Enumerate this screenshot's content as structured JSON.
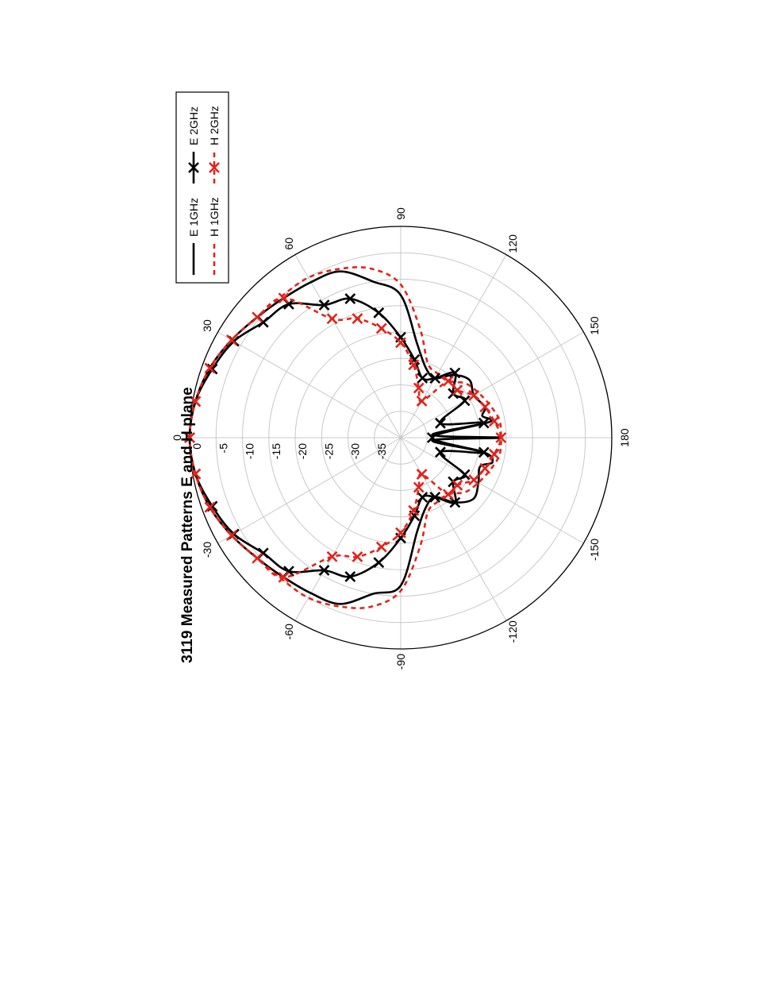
{
  "chart_data": {
    "type": "polar",
    "title": "3119 Measured Patterns E and H plane",
    "radial_unit": "dB",
    "radial_range": [
      -40,
      0
    ],
    "radial_ticks": [
      0,
      -5,
      -10,
      -15,
      -20,
      -25,
      -30,
      -35
    ],
    "radial_tick_labels": [
      "0",
      "-5",
      "-10",
      "-15",
      "-20",
      "-25",
      "-30",
      "-35"
    ],
    "angular_ticks": [
      0,
      30,
      60,
      90,
      120,
      150,
      180,
      -150,
      -120,
      -90,
      -60,
      -30
    ],
    "angular_tick_labels": [
      "0",
      "30",
      "60",
      "90",
      "120",
      "150",
      "180",
      "-150",
      "-120",
      "-90",
      "-60",
      "-30"
    ],
    "grid": true,
    "legend_position": "top-right",
    "series": [
      {
        "name": "E 1GHz",
        "color": "#000000",
        "style": "solid",
        "markers": false,
        "angles": [
          0,
          10,
          20,
          30,
          40,
          50,
          60,
          70,
          80,
          90,
          100,
          110,
          120,
          130,
          140,
          150,
          160,
          165,
          170,
          175,
          180,
          -175,
          -170,
          -165,
          -160,
          -150,
          -140,
          -130,
          -120,
          -110,
          -100,
          -90,
          -80,
          -70,
          -60,
          -50,
          -40,
          -30,
          -20,
          -10
        ],
        "values": [
          0,
          -0.5,
          -1.5,
          -3,
          -4.5,
          -5.5,
          -6,
          -6.5,
          -10,
          -13,
          -22,
          -26,
          -27,
          -24.5,
          -23,
          -24,
          -23,
          -24,
          -23,
          -34,
          -21,
          -34,
          -24,
          -22,
          -24,
          -23,
          -22,
          -24,
          -27,
          -26,
          -22,
          -12,
          -10,
          -6.5,
          -6,
          -5.5,
          -4.5,
          -3,
          -1.5,
          -0.5
        ]
      },
      {
        "name": "H 1GHz",
        "color": "#e0241c",
        "style": "dashed",
        "markers": false,
        "angles": [
          0,
          10,
          20,
          30,
          40,
          50,
          60,
          70,
          80,
          90,
          100,
          110,
          120,
          130,
          140,
          150,
          160,
          170,
          180,
          -170,
          -160,
          -150,
          -140,
          -130,
          -120,
          -110,
          -100,
          -90,
          -80,
          -70,
          -60,
          -50,
          -40,
          -30,
          -20,
          -10
        ],
        "values": [
          0,
          -0.5,
          -1.5,
          -3,
          -4.5,
          -5,
          -5,
          -6,
          -7.5,
          -11,
          -19,
          -25,
          -26,
          -26,
          -24,
          -23,
          -22,
          -21,
          -21,
          -21,
          -22,
          -23,
          -24,
          -26,
          -26,
          -25,
          -19,
          -11,
          -7.5,
          -6,
          -5,
          -5,
          -4.5,
          -3,
          -1.5,
          -0.5
        ]
      },
      {
        "name": "E 2GHz",
        "color": "#000000",
        "style": "solid",
        "markers": true,
        "angles": [
          0,
          10,
          20,
          30,
          40,
          50,
          60,
          70,
          80,
          90,
          100,
          110,
          120,
          130,
          140,
          150,
          160,
          170,
          180,
          -170,
          -160,
          -150,
          -140,
          -130,
          -120,
          -110,
          -100,
          -90,
          -80,
          -70,
          -60,
          -50,
          -40,
          -30,
          -20,
          -10
        ],
        "values": [
          0,
          -0.5,
          -2,
          -3.5,
          -6,
          -7,
          -11,
          -12,
          -16,
          -21,
          -25,
          -28,
          -27,
          -24,
          -27,
          -26,
          -32,
          -24,
          -34,
          -24,
          -32,
          -26,
          -27,
          -24,
          -27,
          -28,
          -25,
          -21,
          -16,
          -12,
          -11,
          -7,
          -6,
          -3.5,
          -2,
          -0.5
        ]
      },
      {
        "name": "H 2GHz",
        "color": "#e0241c",
        "style": "dashed",
        "markers": true,
        "angles": [
          0,
          10,
          20,
          30,
          40,
          50,
          60,
          70,
          80,
          90,
          100,
          110,
          120,
          130,
          140,
          150,
          160,
          170,
          180,
          -170,
          -160,
          -150,
          -140,
          -130,
          -120,
          -110,
          -100,
          -90,
          -80,
          -70,
          -60,
          -50,
          -40,
          -30,
          -20,
          -10
        ],
        "values": [
          0,
          -0.5,
          -1.5,
          -3,
          -4.5,
          -5.5,
          -14,
          -16,
          -19,
          -22,
          -26,
          -30,
          -32,
          -26,
          -26,
          -24,
          -23,
          -22,
          -21,
          -22,
          -23,
          -24,
          -26,
          -26,
          -32,
          -30,
          -26,
          -22,
          -19,
          -16,
          -14,
          -5.5,
          -4.5,
          -3,
          -1.5,
          -0.5
        ]
      }
    ]
  }
}
